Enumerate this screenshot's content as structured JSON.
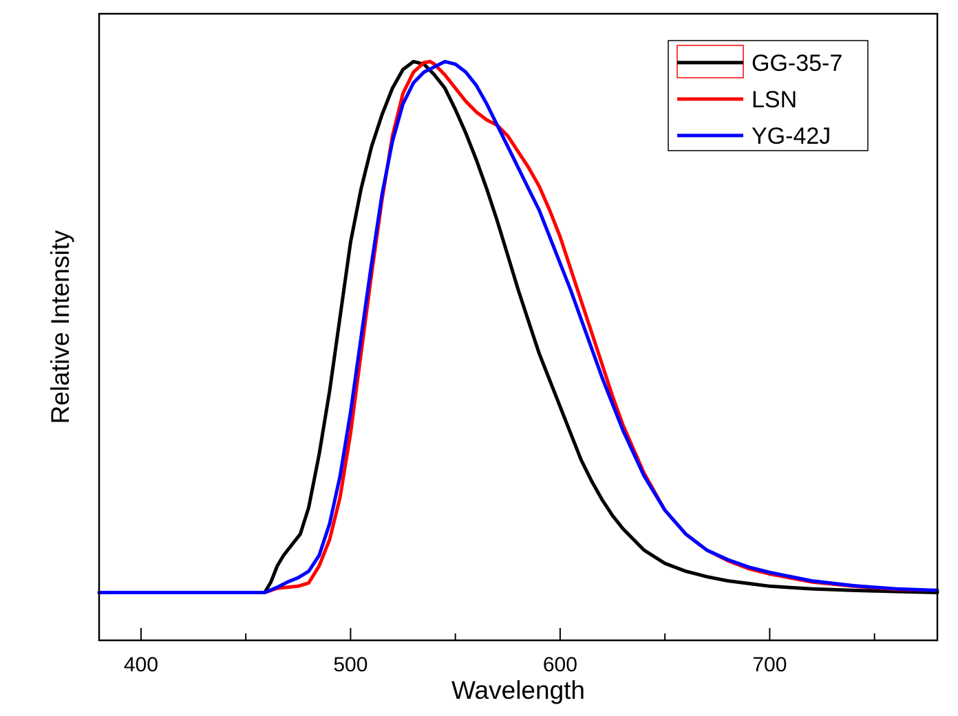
{
  "chart_data": {
    "type": "line",
    "title": "",
    "xlabel": "Wavelength",
    "ylabel": "Relative Intensity",
    "xlim": [
      380,
      780
    ],
    "ylim": [
      -0.09,
      1.09
    ],
    "x_ticks": [
      400,
      500,
      600,
      700
    ],
    "x_tick_labels": [
      "400",
      "500",
      "600",
      "700"
    ],
    "y_ticks_shown": false,
    "grid": false,
    "legend_position": "top-right",
    "series": [
      {
        "name": "GG-35-7",
        "color": "#000000",
        "points": [
          [
            380,
            0
          ],
          [
            459,
            0
          ],
          [
            462,
            0.02
          ],
          [
            465,
            0.05
          ],
          [
            468,
            0.07
          ],
          [
            472,
            0.09
          ],
          [
            476,
            0.11
          ],
          [
            480,
            0.16
          ],
          [
            485,
            0.26
          ],
          [
            490,
            0.38
          ],
          [
            495,
            0.52
          ],
          [
            500,
            0.66
          ],
          [
            505,
            0.76
          ],
          [
            510,
            0.84
          ],
          [
            515,
            0.9
          ],
          [
            520,
            0.95
          ],
          [
            525,
            0.985
          ],
          [
            530,
            1.0
          ],
          [
            535,
            0.995
          ],
          [
            540,
            0.975
          ],
          [
            545,
            0.95
          ],
          [
            550,
            0.91
          ],
          [
            555,
            0.865
          ],
          [
            560,
            0.815
          ],
          [
            565,
            0.76
          ],
          [
            570,
            0.7
          ],
          [
            575,
            0.635
          ],
          [
            580,
            0.57
          ],
          [
            585,
            0.51
          ],
          [
            590,
            0.45
          ],
          [
            595,
            0.4
          ],
          [
            600,
            0.35
          ],
          [
            605,
            0.3
          ],
          [
            610,
            0.25
          ],
          [
            615,
            0.21
          ],
          [
            620,
            0.175
          ],
          [
            625,
            0.145
          ],
          [
            630,
            0.12
          ],
          [
            640,
            0.08
          ],
          [
            650,
            0.055
          ],
          [
            660,
            0.04
          ],
          [
            670,
            0.03
          ],
          [
            680,
            0.022
          ],
          [
            690,
            0.017
          ],
          [
            700,
            0.012
          ],
          [
            720,
            0.007
          ],
          [
            740,
            0.004
          ],
          [
            760,
            0.002
          ],
          [
            780,
            0
          ]
        ]
      },
      {
        "name": "LSN",
        "color": "#ff0000",
        "points": [
          [
            380,
            0
          ],
          [
            459,
            0
          ],
          [
            465,
            0.008
          ],
          [
            470,
            0.01
          ],
          [
            475,
            0.012
          ],
          [
            480,
            0.018
          ],
          [
            485,
            0.05
          ],
          [
            490,
            0.1
          ],
          [
            495,
            0.18
          ],
          [
            500,
            0.3
          ],
          [
            505,
            0.45
          ],
          [
            510,
            0.6
          ],
          [
            515,
            0.74
          ],
          [
            520,
            0.86
          ],
          [
            525,
            0.94
          ],
          [
            530,
            0.98
          ],
          [
            535,
            0.998
          ],
          [
            538,
            1.0
          ],
          [
            540,
            0.995
          ],
          [
            545,
            0.975
          ],
          [
            550,
            0.95
          ],
          [
            555,
            0.925
          ],
          [
            560,
            0.905
          ],
          [
            565,
            0.89
          ],
          [
            570,
            0.88
          ],
          [
            575,
            0.86
          ],
          [
            580,
            0.83
          ],
          [
            585,
            0.8
          ],
          [
            590,
            0.765
          ],
          [
            595,
            0.72
          ],
          [
            600,
            0.67
          ],
          [
            605,
            0.61
          ],
          [
            610,
            0.55
          ],
          [
            615,
            0.49
          ],
          [
            620,
            0.43
          ],
          [
            625,
            0.37
          ],
          [
            630,
            0.315
          ],
          [
            640,
            0.225
          ],
          [
            650,
            0.155
          ],
          [
            660,
            0.11
          ],
          [
            670,
            0.08
          ],
          [
            680,
            0.06
          ],
          [
            690,
            0.045
          ],
          [
            700,
            0.035
          ],
          [
            720,
            0.02
          ],
          [
            740,
            0.012
          ],
          [
            760,
            0.006
          ],
          [
            780,
            0.004
          ]
        ]
      },
      {
        "name": "YG-42J",
        "color": "#0000ff",
        "points": [
          [
            380,
            0
          ],
          [
            459,
            0
          ],
          [
            465,
            0.01
          ],
          [
            470,
            0.02
          ],
          [
            475,
            0.028
          ],
          [
            480,
            0.04
          ],
          [
            485,
            0.07
          ],
          [
            490,
            0.13
          ],
          [
            495,
            0.22
          ],
          [
            500,
            0.34
          ],
          [
            505,
            0.48
          ],
          [
            510,
            0.62
          ],
          [
            515,
            0.75
          ],
          [
            520,
            0.85
          ],
          [
            525,
            0.92
          ],
          [
            530,
            0.96
          ],
          [
            535,
            0.98
          ],
          [
            540,
            0.99
          ],
          [
            545,
            1.0
          ],
          [
            550,
            0.995
          ],
          [
            555,
            0.98
          ],
          [
            560,
            0.955
          ],
          [
            565,
            0.92
          ],
          [
            570,
            0.88
          ],
          [
            575,
            0.84
          ],
          [
            580,
            0.8
          ],
          [
            585,
            0.76
          ],
          [
            590,
            0.72
          ],
          [
            595,
            0.67
          ],
          [
            600,
            0.62
          ],
          [
            605,
            0.57
          ],
          [
            610,
            0.515
          ],
          [
            615,
            0.46
          ],
          [
            620,
            0.405
          ],
          [
            625,
            0.355
          ],
          [
            630,
            0.305
          ],
          [
            640,
            0.22
          ],
          [
            650,
            0.155
          ],
          [
            660,
            0.11
          ],
          [
            670,
            0.08
          ],
          [
            680,
            0.062
          ],
          [
            690,
            0.048
          ],
          [
            700,
            0.038
          ],
          [
            720,
            0.022
          ],
          [
            740,
            0.013
          ],
          [
            760,
            0.007
          ],
          [
            780,
            0.004
          ]
        ]
      }
    ]
  }
}
